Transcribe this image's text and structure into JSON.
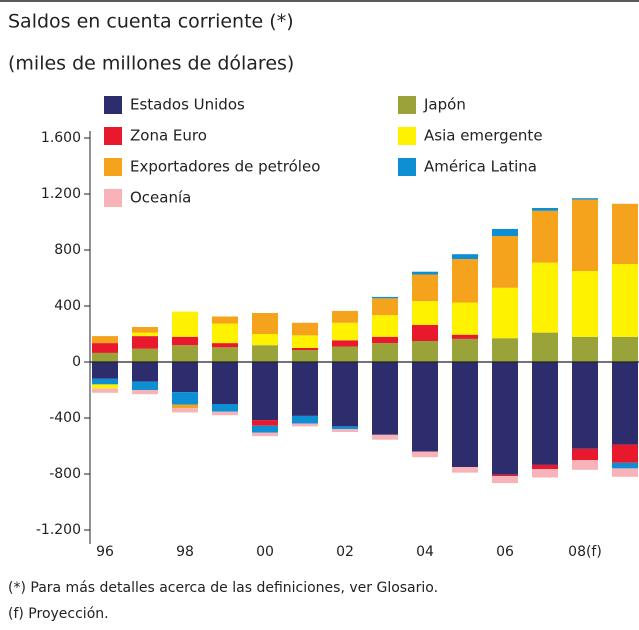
{
  "chart_data": {
    "type": "stacked-bar",
    "title": "Saldos en cuenta corriente (*)",
    "subtitle": "(miles de millones de dólares)",
    "notes": [
      "(*) Para más detalles acerca de las definiciones, ver Glosario.",
      "(f) Proyección."
    ],
    "categories": [
      "96",
      null,
      "98",
      null,
      "00",
      null,
      "02",
      null,
      "04",
      null,
      "06",
      null,
      "08(f)",
      null
    ],
    "ylim": [
      -1300,
      1650
    ],
    "yticks": [
      {
        "value": 1600,
        "label": "1.600"
      },
      {
        "value": 1200,
        "label": "1.200"
      },
      800,
      400,
      0,
      -400,
      -800,
      {
        "value": -1200,
        "label": "-1.200"
      }
    ],
    "series": [
      {
        "name": "Estados Unidos",
        "color": "#2d2d6e",
        "values": [
          -120,
          -140,
          -215,
          -300,
          -415,
          -385,
          -460,
          -520,
          -640,
          -750,
          -805,
          -735,
          -620,
          -590
        ]
      },
      {
        "name": "Zona Euro",
        "color": "#e8192c",
        "values": [
          70,
          90,
          60,
          30,
          -40,
          15,
          45,
          45,
          115,
          30,
          -10,
          -30,
          -80,
          -130
        ]
      },
      {
        "name": "Exportadores de petróleo",
        "color": "#f5a21d",
        "values": [
          50,
          40,
          -25,
          50,
          150,
          90,
          85,
          120,
          190,
          310,
          370,
          370,
          510,
          430
        ]
      },
      {
        "name": "Oceanía",
        "color": "#f7b3b8",
        "values": [
          -30,
          -30,
          -30,
          -25,
          -25,
          -20,
          -20,
          -35,
          -40,
          -40,
          -50,
          -60,
          -70,
          -60
        ]
      },
      {
        "name": "Japón",
        "color": "#9aa23a",
        "values": [
          65,
          95,
          120,
          105,
          120,
          85,
          110,
          135,
          150,
          165,
          170,
          210,
          180,
          180
        ]
      },
      {
        "name": "Asia emergente",
        "color": "#fff200",
        "values": [
          -30,
          25,
          180,
          140,
          80,
          90,
          125,
          155,
          170,
          230,
          360,
          500,
          470,
          520
        ]
      },
      {
        "name": "América Latina",
        "color": "#0f8fd3",
        "values": [
          -40,
          -60,
          -90,
          -55,
          -50,
          -55,
          -20,
          10,
          20,
          35,
          50,
          20,
          10,
          -40
        ]
      }
    ]
  }
}
